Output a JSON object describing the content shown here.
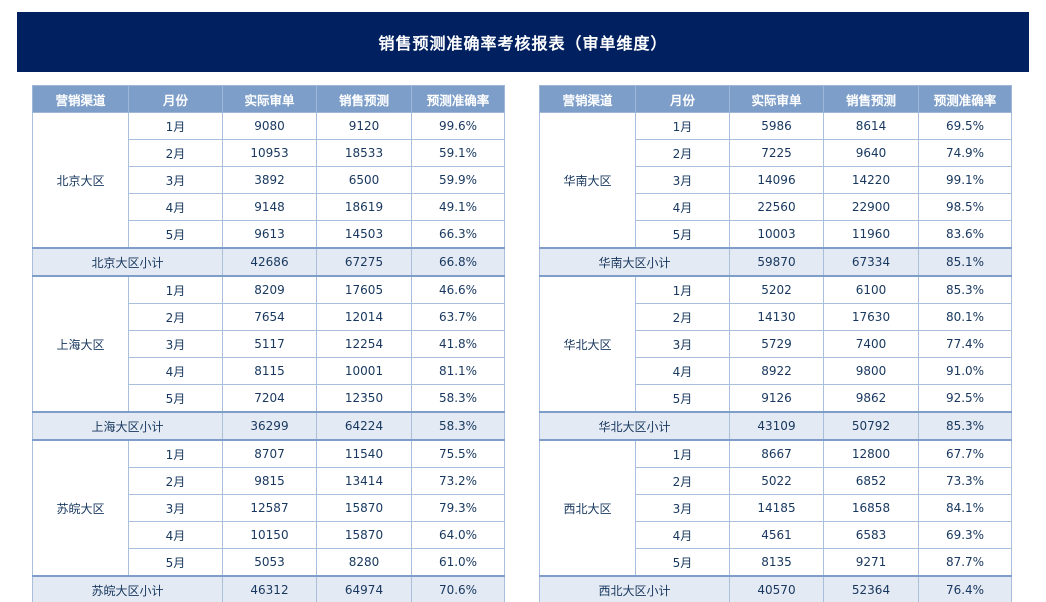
{
  "title": "销售预测准确率考核报表（审单维度）",
  "columns": [
    "营销渠道",
    "月份",
    "实际审单",
    "销售预测",
    "预测准确率"
  ],
  "colors": {
    "page_bg": "#FFFFFF",
    "title_bar_bg": "#002060",
    "title_text": "#FFFFFF",
    "header_bg": "#7D9EC9",
    "header_text": "#FFFFFF",
    "grid_light": "#A9BFDC",
    "grid_strong": "#8FA9CC",
    "header_grid": "#9FB6D6",
    "subtotal_bg": "#E4EAF4",
    "subtotal_border": "#7E9EC9",
    "cell_text": "#17375E"
  },
  "tables": [
    {
      "side": "left",
      "groups": [
        {
          "region": "北京大区",
          "rows": [
            {
              "month": "1月",
              "actual": "9080",
              "forecast": "9120",
              "accuracy": "99.6%"
            },
            {
              "month": "2月",
              "actual": "10953",
              "forecast": "18533",
              "accuracy": "59.1%"
            },
            {
              "month": "3月",
              "actual": "3892",
              "forecast": "6500",
              "accuracy": "59.9%"
            },
            {
              "month": "4月",
              "actual": "9148",
              "forecast": "18619",
              "accuracy": "49.1%"
            },
            {
              "month": "5月",
              "actual": "9613",
              "forecast": "14503",
              "accuracy": "66.3%"
            }
          ],
          "subtotal": {
            "label": "北京大区小计",
            "actual": "42686",
            "forecast": "67275",
            "accuracy": "66.8%"
          }
        },
        {
          "region": "上海大区",
          "rows": [
            {
              "month": "1月",
              "actual": "8209",
              "forecast": "17605",
              "accuracy": "46.6%"
            },
            {
              "month": "2月",
              "actual": "7654",
              "forecast": "12014",
              "accuracy": "63.7%"
            },
            {
              "month": "3月",
              "actual": "5117",
              "forecast": "12254",
              "accuracy": "41.8%"
            },
            {
              "month": "4月",
              "actual": "8115",
              "forecast": "10001",
              "accuracy": "81.1%"
            },
            {
              "month": "5月",
              "actual": "7204",
              "forecast": "12350",
              "accuracy": "58.3%"
            }
          ],
          "subtotal": {
            "label": "上海大区小计",
            "actual": "36299",
            "forecast": "64224",
            "accuracy": "58.3%"
          }
        },
        {
          "region": "苏皖大区",
          "rows": [
            {
              "month": "1月",
              "actual": "8707",
              "forecast": "11540",
              "accuracy": "75.5%"
            },
            {
              "month": "2月",
              "actual": "9815",
              "forecast": "13414",
              "accuracy": "73.2%"
            },
            {
              "month": "3月",
              "actual": "12587",
              "forecast": "15870",
              "accuracy": "79.3%"
            },
            {
              "month": "4月",
              "actual": "10150",
              "forecast": "15870",
              "accuracy": "64.0%"
            },
            {
              "month": "5月",
              "actual": "5053",
              "forecast": "8280",
              "accuracy": "61.0%"
            }
          ],
          "subtotal": {
            "label": "苏皖大区小计",
            "actual": "46312",
            "forecast": "64974",
            "accuracy": "70.6%"
          }
        }
      ]
    },
    {
      "side": "right",
      "groups": [
        {
          "region": "华南大区",
          "rows": [
            {
              "month": "1月",
              "actual": "5986",
              "forecast": "8614",
              "accuracy": "69.5%"
            },
            {
              "month": "2月",
              "actual": "7225",
              "forecast": "9640",
              "accuracy": "74.9%"
            },
            {
              "month": "3月",
              "actual": "14096",
              "forecast": "14220",
              "accuracy": "99.1%"
            },
            {
              "month": "4月",
              "actual": "22560",
              "forecast": "22900",
              "accuracy": "98.5%"
            },
            {
              "month": "5月",
              "actual": "10003",
              "forecast": "11960",
              "accuracy": "83.6%"
            }
          ],
          "subtotal": {
            "label": "华南大区小计",
            "actual": "59870",
            "forecast": "67334",
            "accuracy": "85.1%"
          }
        },
        {
          "region": "华北大区",
          "rows": [
            {
              "month": "1月",
              "actual": "5202",
              "forecast": "6100",
              "accuracy": "85.3%"
            },
            {
              "month": "2月",
              "actual": "14130",
              "forecast": "17630",
              "accuracy": "80.1%"
            },
            {
              "month": "3月",
              "actual": "5729",
              "forecast": "7400",
              "accuracy": "77.4%"
            },
            {
              "month": "4月",
              "actual": "8922",
              "forecast": "9800",
              "accuracy": "91.0%"
            },
            {
              "month": "5月",
              "actual": "9126",
              "forecast": "9862",
              "accuracy": "92.5%"
            }
          ],
          "subtotal": {
            "label": "华北大区小计",
            "actual": "43109",
            "forecast": "50792",
            "accuracy": "85.3%"
          }
        },
        {
          "region": "西北大区",
          "rows": [
            {
              "month": "1月",
              "actual": "8667",
              "forecast": "12800",
              "accuracy": "67.7%"
            },
            {
              "month": "2月",
              "actual": "5022",
              "forecast": "6852",
              "accuracy": "73.3%"
            },
            {
              "month": "3月",
              "actual": "14185",
              "forecast": "16858",
              "accuracy": "84.1%"
            },
            {
              "month": "4月",
              "actual": "4561",
              "forecast": "6583",
              "accuracy": "69.3%"
            },
            {
              "month": "5月",
              "actual": "8135",
              "forecast": "9271",
              "accuracy": "87.7%"
            }
          ],
          "subtotal": {
            "label": "西北大区小计",
            "actual": "40570",
            "forecast": "52364",
            "accuracy": "76.4%"
          }
        }
      ]
    }
  ],
  "chart_data": [
    {
      "type": "table",
      "title": "销售预测准确率考核报表（审单维度）",
      "columns": [
        "营销渠道",
        "月份",
        "实际审单",
        "销售预测",
        "预测准确率"
      ],
      "rows": [
        [
          "北京大区",
          "1月",
          9080,
          9120,
          "99.6%"
        ],
        [
          "北京大区",
          "2月",
          10953,
          18533,
          "59.1%"
        ],
        [
          "北京大区",
          "3月",
          3892,
          6500,
          "59.9%"
        ],
        [
          "北京大区",
          "4月",
          9148,
          18619,
          "49.1%"
        ],
        [
          "北京大区",
          "5月",
          9613,
          14503,
          "66.3%"
        ],
        [
          "北京大区小计",
          "",
          42686,
          67275,
          "66.8%"
        ],
        [
          "上海大区",
          "1月",
          8209,
          17605,
          "46.6%"
        ],
        [
          "上海大区",
          "2月",
          7654,
          12014,
          "63.7%"
        ],
        [
          "上海大区",
          "3月",
          5117,
          12254,
          "41.8%"
        ],
        [
          "上海大区",
          "4月",
          8115,
          10001,
          "81.1%"
        ],
        [
          "上海大区",
          "5月",
          7204,
          12350,
          "58.3%"
        ],
        [
          "上海大区小计",
          "",
          36299,
          64224,
          "58.3%"
        ],
        [
          "苏皖大区",
          "1月",
          8707,
          11540,
          "75.5%"
        ],
        [
          "苏皖大区",
          "2月",
          9815,
          13414,
          "73.2%"
        ],
        [
          "苏皖大区",
          "3月",
          12587,
          15870,
          "79.3%"
        ],
        [
          "苏皖大区",
          "4月",
          10150,
          15870,
          "64.0%"
        ],
        [
          "苏皖大区",
          "5月",
          5053,
          8280,
          "61.0%"
        ],
        [
          "苏皖大区小计",
          "",
          46312,
          64974,
          "70.6%"
        ]
      ]
    },
    {
      "type": "table",
      "title": "销售预测准确率考核报表（审单维度）",
      "columns": [
        "营销渠道",
        "月份",
        "实际审单",
        "销售预测",
        "预测准确率"
      ],
      "rows": [
        [
          "华南大区",
          "1月",
          5986,
          8614,
          "69.5%"
        ],
        [
          "华南大区",
          "2月",
          7225,
          9640,
          "74.9%"
        ],
        [
          "华南大区",
          "3月",
          14096,
          14220,
          "99.1%"
        ],
        [
          "华南大区",
          "4月",
          22560,
          22900,
          "98.5%"
        ],
        [
          "华南大区",
          "5月",
          10003,
          11960,
          "83.6%"
        ],
        [
          "华南大区小计",
          "",
          59870,
          67334,
          "85.1%"
        ],
        [
          "华北大区",
          "1月",
          5202,
          6100,
          "85.3%"
        ],
        [
          "华北大区",
          "2月",
          14130,
          17630,
          "80.1%"
        ],
        [
          "华北大区",
          "3月",
          5729,
          7400,
          "77.4%"
        ],
        [
          "华北大区",
          "4月",
          8922,
          9800,
          "91.0%"
        ],
        [
          "华北大区",
          "5月",
          9126,
          9862,
          "92.5%"
        ],
        [
          "华北大区小计",
          "",
          43109,
          50792,
          "85.3%"
        ],
        [
          "西北大区",
          "1月",
          8667,
          12800,
          "67.7%"
        ],
        [
          "西北大区",
          "2月",
          5022,
          6852,
          "73.3%"
        ],
        [
          "西北大区",
          "3月",
          14185,
          16858,
          "84.1%"
        ],
        [
          "西北大区",
          "4月",
          4561,
          6583,
          "69.3%"
        ],
        [
          "西北大区",
          "5月",
          8135,
          9271,
          "87.7%"
        ],
        [
          "西北大区小计",
          "",
          40570,
          52364,
          "76.4%"
        ]
      ]
    }
  ]
}
